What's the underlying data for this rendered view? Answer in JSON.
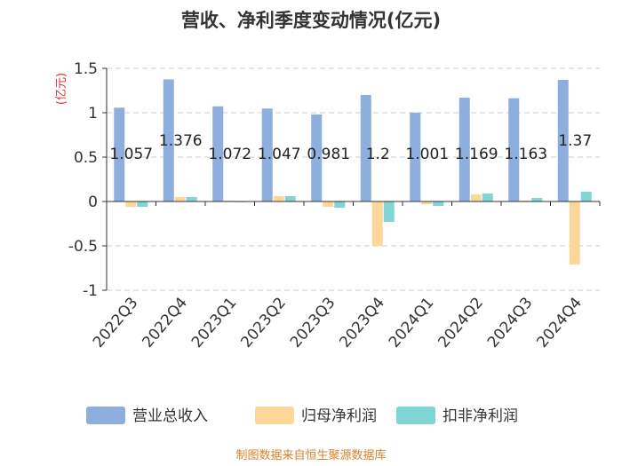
{
  "chart_data": {
    "type": "bar",
    "title": "营收、净利季度变动情况(亿元)",
    "ylabel": "(亿元)",
    "categories": [
      "2022Q3",
      "2022Q4",
      "2023Q1",
      "2023Q2",
      "2023Q3",
      "2023Q4",
      "2024Q1",
      "2024Q2",
      "2024Q3",
      "2024Q4"
    ],
    "series": [
      {
        "name": "营业总收入",
        "color": "#8eaede",
        "values": [
          1.057,
          1.376,
          1.072,
          1.047,
          0.981,
          1.2,
          1.001,
          1.169,
          1.163,
          1.37
        ],
        "labels": [
          "1.057",
          "1.376",
          "1.072",
          "1.047",
          "0.981",
          "1.2",
          "1.001",
          "1.169",
          "1.163",
          "1.37"
        ]
      },
      {
        "name": "归母净利润",
        "color": "#fdd79a",
        "values": [
          -0.06,
          0.05,
          0.01,
          0.06,
          -0.06,
          -0.5,
          -0.03,
          0.08,
          0.01,
          -0.71
        ]
      },
      {
        "name": "扣非净利润",
        "color": "#7fd6d4",
        "values": [
          -0.06,
          0.05,
          0.0,
          0.06,
          -0.07,
          -0.23,
          -0.05,
          0.09,
          0.04,
          0.11
        ]
      }
    ],
    "yticks": [
      "1.5",
      "1",
      "0.5",
      "0",
      "-0.5",
      "-1"
    ],
    "ytick_values": [
      1.5,
      1,
      0.5,
      0,
      -0.5,
      -1
    ],
    "ylim": [
      -1,
      1.5
    ],
    "grid": true,
    "legend_position": "bottom",
    "source": "制图数据来自恒生聚源数据库"
  }
}
